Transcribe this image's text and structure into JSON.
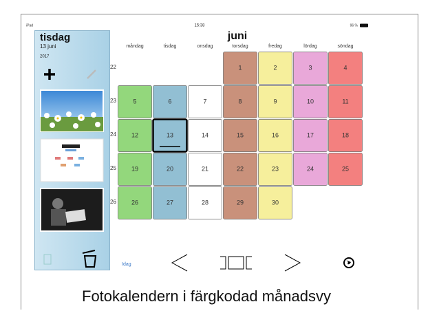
{
  "status_bar": {
    "device": "iPad",
    "time": "15:38",
    "battery": "96 %"
  },
  "sidebar": {
    "weekday": "tisdag",
    "date": "13 juni",
    "year": "2017"
  },
  "calendar": {
    "month": "juni",
    "weekdays": [
      "måndag",
      "tisdag",
      "onsdag",
      "torsdag",
      "fredag",
      "lördag",
      "söndag"
    ],
    "weekday_colors": [
      "#93d77c",
      "#92bfd3",
      "#ffffff",
      "#c9917b",
      "#f6ef9c",
      "#e9a8d9",
      "#f3807f"
    ],
    "weeks": [
      {
        "number": "22",
        "days": [
          null,
          null,
          null,
          "1",
          "2",
          "3",
          "4"
        ]
      },
      {
        "number": "23",
        "days": [
          "5",
          "6",
          "7",
          "8",
          "9",
          "10",
          "11"
        ]
      },
      {
        "number": "24",
        "days": [
          "12",
          "13",
          "14",
          "15",
          "16",
          "17",
          "18"
        ]
      },
      {
        "number": "25",
        "days": [
          "19",
          "20",
          "21",
          "22",
          "23",
          "24",
          "25"
        ]
      },
      {
        "number": "26",
        "days": [
          "26",
          "27",
          "28",
          "29",
          "30",
          null,
          null
        ]
      }
    ]
  },
  "toolbar": {
    "today": "Idag"
  },
  "caption": "Fotokalendern i färgkodad månadsvy"
}
